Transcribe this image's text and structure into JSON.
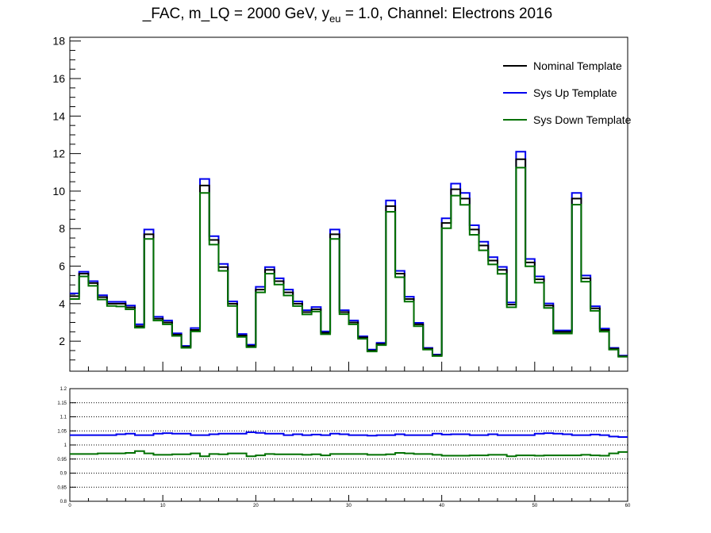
{
  "chart_data": [
    {
      "type": "line",
      "title": "_FAC, m_LQ = 2000 GeV, y",
      "title_sub": "eu",
      "title_rest": " = 1.0, Channel: Electrons 2016",
      "xlabel": "",
      "ylabel": "",
      "xlim": [
        0,
        60
      ],
      "ylim": [
        0.4,
        18.2
      ],
      "yticks": [
        "2",
        "4",
        "6",
        "8",
        "10",
        "12",
        "14",
        "16",
        "18"
      ],
      "grid": false,
      "legend_position": "top-right",
      "colors": {
        "nominal": "#000000",
        "up": "#0000ee",
        "down": "#007000"
      },
      "legend": [
        "Nominal Template",
        "Sys Up Template",
        "Sys Down Template"
      ],
      "bin_edges": [
        0,
        1,
        2,
        3,
        4,
        5,
        6,
        7,
        8,
        9,
        10,
        11,
        12,
        13,
        14,
        15,
        16,
        17,
        18,
        19,
        20,
        21,
        22,
        23,
        24,
        25,
        26,
        27,
        28,
        29,
        30,
        31,
        32,
        33,
        34,
        35,
        36,
        37,
        38,
        39,
        40,
        41,
        42,
        43,
        44,
        45,
        46,
        47,
        48,
        49,
        50,
        51,
        52,
        53,
        54,
        55,
        56,
        57,
        58,
        59,
        60
      ],
      "series": [
        {
          "name": "Nominal Template",
          "values": [
            4.4,
            5.6,
            5.1,
            4.35,
            4.0,
            4.0,
            3.8,
            2.8,
            7.7,
            3.2,
            3.0,
            2.35,
            1.7,
            2.6,
            10.3,
            7.4,
            5.95,
            4.0,
            2.3,
            1.75,
            4.75,
            5.8,
            5.2,
            4.6,
            4.0,
            3.55,
            3.7,
            2.45,
            7.7,
            3.55,
            3.0,
            2.2,
            1.5,
            1.85,
            9.2,
            5.6,
            4.25,
            2.9,
            1.6,
            1.25,
            8.3,
            10.1,
            9.6,
            7.95,
            7.1,
            6.3,
            5.8,
            3.95,
            11.7,
            6.2,
            5.3,
            3.9,
            2.5,
            2.5,
            9.6,
            5.35,
            3.75,
            2.6,
            1.6,
            1.2
          ]
        },
        {
          "name": "Sys Up Template",
          "values": [
            4.55,
            5.7,
            5.2,
            4.45,
            4.1,
            4.1,
            3.9,
            2.9,
            7.95,
            3.3,
            3.1,
            2.42,
            1.75,
            2.7,
            10.65,
            7.6,
            6.12,
            4.12,
            2.38,
            1.81,
            4.9,
            5.95,
            5.35,
            4.75,
            4.12,
            3.65,
            3.82,
            2.52,
            7.95,
            3.65,
            3.1,
            2.26,
            1.55,
            1.91,
            9.5,
            5.75,
            4.37,
            2.98,
            1.64,
            1.29,
            8.55,
            10.4,
            9.9,
            8.18,
            7.3,
            6.48,
            5.96,
            4.06,
            12.1,
            6.38,
            5.45,
            4.01,
            2.57,
            2.57,
            9.9,
            5.5,
            3.86,
            2.67,
            1.64,
            1.23
          ]
        },
        {
          "name": "Sys Down Template",
          "values": [
            4.25,
            5.45,
            4.95,
            4.22,
            3.88,
            3.85,
            3.7,
            2.72,
            7.45,
            3.1,
            2.9,
            2.28,
            1.65,
            2.52,
            9.9,
            7.15,
            5.75,
            3.88,
            2.23,
            1.68,
            4.6,
            5.6,
            5.02,
            4.44,
            3.87,
            3.43,
            3.58,
            2.37,
            7.45,
            3.44,
            2.9,
            2.13,
            1.45,
            1.79,
            8.9,
            5.41,
            4.11,
            2.8,
            1.55,
            1.21,
            8.02,
            9.76,
            9.27,
            7.67,
            6.84,
            6.09,
            5.59,
            3.81,
            11.25,
            5.99,
            5.12,
            3.77,
            2.41,
            2.41,
            9.28,
            5.17,
            3.62,
            2.51,
            1.55,
            1.17
          ]
        }
      ]
    },
    {
      "type": "line",
      "title": "",
      "xlabel": "",
      "ylabel": "",
      "xlim": [
        0,
        60
      ],
      "ylim": [
        0.8,
        1.2
      ],
      "xticks": [
        "0",
        "10",
        "20",
        "30",
        "40",
        "50",
        "60"
      ],
      "yticks": [
        "0.8",
        "0.85",
        "0.9",
        "0.95",
        "1",
        "1.05",
        "1.1",
        "1.15",
        "1.2"
      ],
      "grid": true,
      "colors": {
        "up": "#0000ee",
        "down": "#007000"
      },
      "series": [
        {
          "name": "Sys Up Template",
          "values": [
            1.035,
            1.035,
            1.035,
            1.035,
            1.035,
            1.038,
            1.04,
            1.035,
            1.035,
            1.04,
            1.042,
            1.04,
            1.04,
            1.035,
            1.035,
            1.038,
            1.04,
            1.04,
            1.04,
            1.045,
            1.043,
            1.04,
            1.04,
            1.035,
            1.038,
            1.035,
            1.037,
            1.035,
            1.04,
            1.038,
            1.035,
            1.035,
            1.033,
            1.035,
            1.035,
            1.038,
            1.035,
            1.035,
            1.035,
            1.04,
            1.037,
            1.038,
            1.038,
            1.035,
            1.035,
            1.038,
            1.035,
            1.035,
            1.035,
            1.035,
            1.04,
            1.042,
            1.04,
            1.038,
            1.035,
            1.035,
            1.037,
            1.035,
            1.03,
            1.028
          ]
        },
        {
          "name": "Sys Down Template",
          "values": [
            0.968,
            0.968,
            0.968,
            0.97,
            0.97,
            0.97,
            0.972,
            0.978,
            0.97,
            0.965,
            0.965,
            0.967,
            0.967,
            0.97,
            0.96,
            0.968,
            0.967,
            0.97,
            0.97,
            0.96,
            0.963,
            0.968,
            0.967,
            0.967,
            0.967,
            0.965,
            0.967,
            0.963,
            0.968,
            0.968,
            0.968,
            0.968,
            0.965,
            0.965,
            0.967,
            0.972,
            0.97,
            0.968,
            0.968,
            0.965,
            0.962,
            0.962,
            0.962,
            0.963,
            0.963,
            0.965,
            0.965,
            0.96,
            0.963,
            0.963,
            0.962,
            0.963,
            0.963,
            0.963,
            0.963,
            0.965,
            0.963,
            0.962,
            0.97,
            0.975
          ]
        }
      ]
    }
  ]
}
